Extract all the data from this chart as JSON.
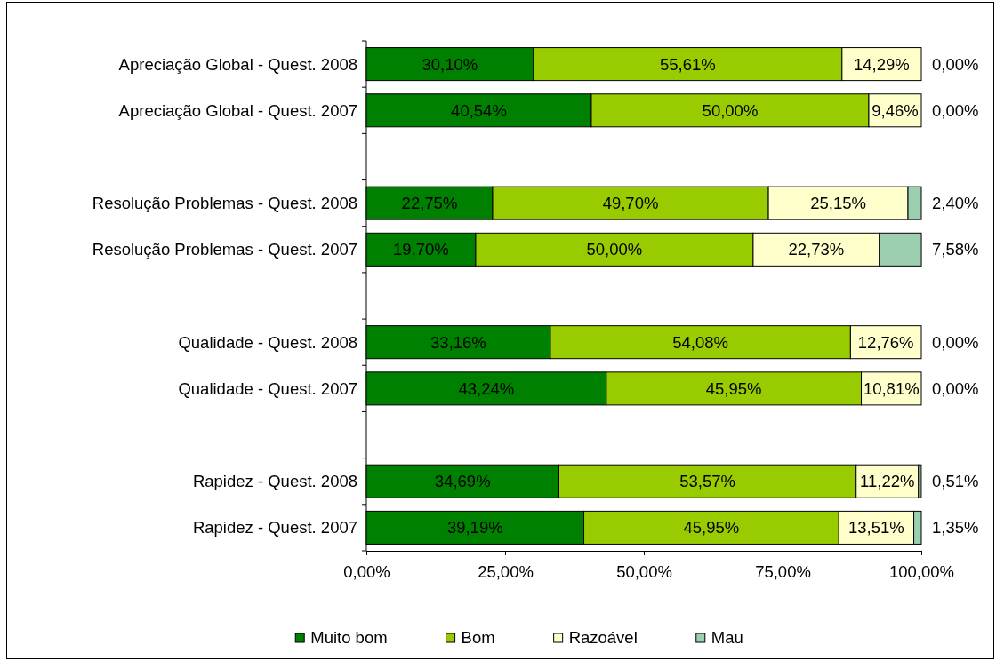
{
  "chart_data": {
    "type": "bar",
    "orientation": "horizontal",
    "stacked": true,
    "categories": [
      "Apreciação Global - Quest. 2008",
      "Apreciação Global - Quest. 2007",
      null,
      "Resolução Problemas - Quest. 2008",
      "Resolução Problemas - Quest. 2007",
      null,
      "Qualidade - Quest. 2008",
      "Qualidade - Quest. 2007",
      null,
      "Rapidez - Quest. 2008",
      "Rapidez - Quest. 2007"
    ],
    "series": [
      {
        "name": "Muito bom",
        "color": "#008000",
        "values": [
          30.1,
          40.54,
          null,
          22.75,
          19.7,
          null,
          33.16,
          43.24,
          null,
          34.69,
          39.19
        ],
        "value_labels": [
          "30,10%",
          "40,54%",
          null,
          "22,75%",
          "19,70%",
          null,
          "33,16%",
          "43,24%",
          null,
          "34,69%",
          "39,19%"
        ]
      },
      {
        "name": "Bom",
        "color": "#99cc00",
        "values": [
          55.61,
          50.0,
          null,
          49.7,
          50.0,
          null,
          54.08,
          45.95,
          null,
          53.57,
          45.95
        ],
        "value_labels": [
          "55,61%",
          "50,00%",
          null,
          "49,70%",
          "50,00%",
          null,
          "54,08%",
          "45,95%",
          null,
          "53,57%",
          "45,95%"
        ]
      },
      {
        "name": "Razoável",
        "color": "#ffffcc",
        "values": [
          14.29,
          9.46,
          null,
          25.15,
          22.73,
          null,
          12.76,
          10.81,
          null,
          11.22,
          13.51
        ],
        "value_labels": [
          "14,29%",
          "9,46%",
          null,
          "25,15%",
          "22,73%",
          null,
          "12,76%",
          "10,81%",
          null,
          "11,22%",
          "13,51%"
        ]
      },
      {
        "name": "Mau",
        "color": "#9ccfb0",
        "values": [
          0.0,
          0.0,
          null,
          2.4,
          7.58,
          null,
          0.0,
          0.0,
          null,
          0.51,
          1.35
        ],
        "value_labels": [
          "0,00%",
          "0,00%",
          null,
          "2,40%",
          "7,58%",
          null,
          "0,00%",
          "0,00%",
          null,
          "0,51%",
          "1,35%"
        ]
      }
    ],
    "xlim": [
      0,
      100
    ],
    "xticks": [
      {
        "value": 0,
        "label": "0,00%"
      },
      {
        "value": 25,
        "label": "25,00%"
      },
      {
        "value": 50,
        "label": "50,00%"
      },
      {
        "value": 75,
        "label": "75,00%"
      },
      {
        "value": 100,
        "label": "100,00%"
      }
    ],
    "legend": "bottom"
  }
}
